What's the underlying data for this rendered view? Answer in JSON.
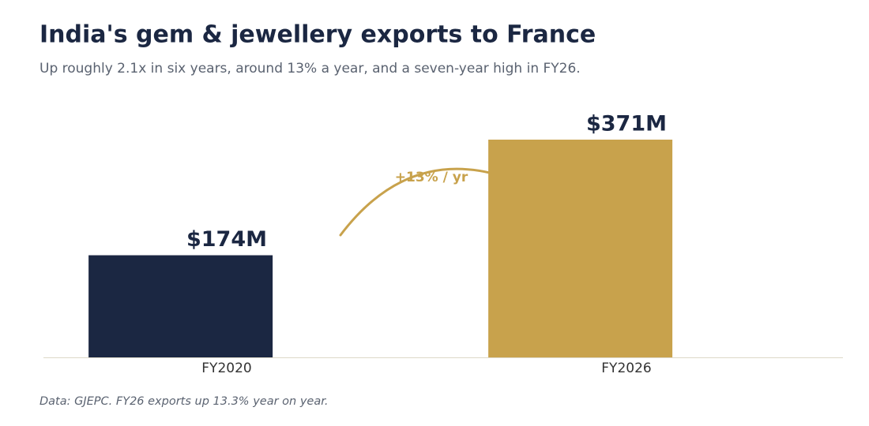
{
  "chart_data": {
    "type": "bar",
    "title": "India's gem & jewellery exports to France",
    "subtitle": "Up roughly 2.1x in six years, around 13% a year, and a seven-year high in FY26.",
    "categories": [
      "FY2020",
      "FY2026"
    ],
    "values": [
      174,
      371
    ],
    "value_labels": [
      "$174M",
      "$371M"
    ],
    "colors": [
      "#1b2742",
      "#c8a24c"
    ],
    "annotation": "+13% / yr",
    "footnote": "Data: GJEPC. FY26 exports up 13.3% year on year."
  }
}
